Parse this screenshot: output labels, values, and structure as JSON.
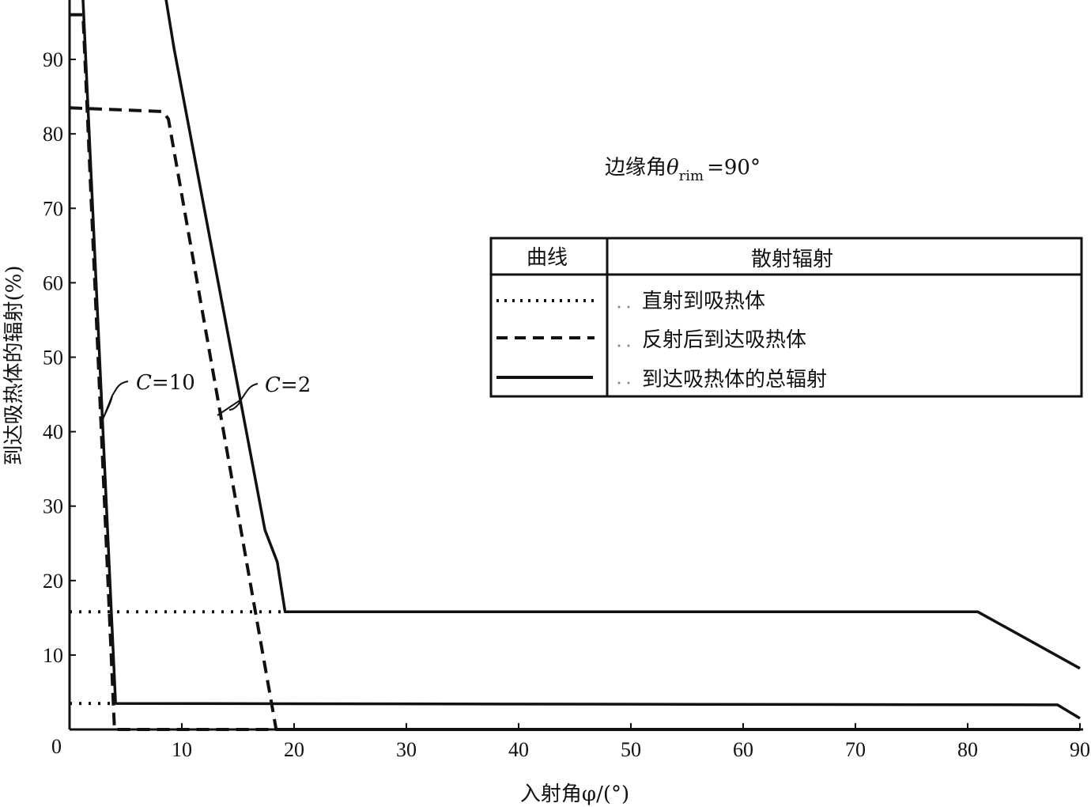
{
  "chart_data": {
    "type": "line",
    "xlabel": "入射角φ/(°)",
    "ylabel": "到达吸热体的辐射(%)",
    "xlim": [
      0,
      90
    ],
    "ylim": [
      0,
      98
    ],
    "xticks": [
      0,
      10,
      20,
      30,
      40,
      50,
      60,
      70,
      80,
      90
    ],
    "yticks": [
      10,
      20,
      30,
      40,
      50,
      60,
      70,
      80,
      90
    ],
    "origin_label": "0",
    "grid": false,
    "annotation": {
      "prefix": "边缘角",
      "symbol": "θ",
      "subscript": "rim",
      "suffix": "=90°"
    },
    "curve_labels": [
      {
        "text_italic": "C",
        "text": "=10"
      },
      {
        "text_italic": "C",
        "text": "=2"
      }
    ],
    "legend": {
      "placement": "right-center",
      "header_curve": "曲线",
      "header_name": "散射辐射",
      "entries": [
        {
          "style": "dotted",
          "label": "直射到吸热体"
        },
        {
          "style": "dashed",
          "label": "反射后到达吸热体"
        },
        {
          "style": "solid",
          "label": "到达吸热体的总辐射"
        }
      ]
    },
    "series": [
      {
        "group": "C=10",
        "style": "dotted",
        "points": [
          [
            0,
            3.5
          ],
          [
            4.0,
            3.5
          ]
        ]
      },
      {
        "group": "C=10",
        "style": "dashed",
        "points": [
          [
            0,
            96
          ],
          [
            1.2,
            96
          ],
          [
            4.0,
            0
          ],
          [
            90,
            0
          ]
        ]
      },
      {
        "group": "C=10",
        "style": "solid",
        "points": [
          [
            1.2,
            98
          ],
          [
            4.1,
            3.5
          ],
          [
            88,
            3.3
          ],
          [
            90,
            1.5
          ]
        ]
      },
      {
        "group": "C=2",
        "style": "dotted",
        "points": [
          [
            0,
            15.8
          ],
          [
            19.2,
            15.8
          ]
        ]
      },
      {
        "group": "C=2",
        "style": "dashed",
        "points": [
          [
            0,
            83.5
          ],
          [
            8.3,
            83
          ],
          [
            8.8,
            82
          ],
          [
            18.4,
            0
          ],
          [
            90,
            0
          ]
        ]
      },
      {
        "group": "C=2",
        "style": "solid",
        "points": [
          [
            8.6,
            98
          ],
          [
            9.3,
            91.5
          ],
          [
            17.4,
            26.8
          ],
          [
            18.5,
            22.5
          ],
          [
            19.2,
            15.8
          ],
          [
            80.9,
            15.8
          ],
          [
            90,
            8.2
          ]
        ]
      }
    ],
    "colors": {
      "line": "#111111"
    }
  }
}
